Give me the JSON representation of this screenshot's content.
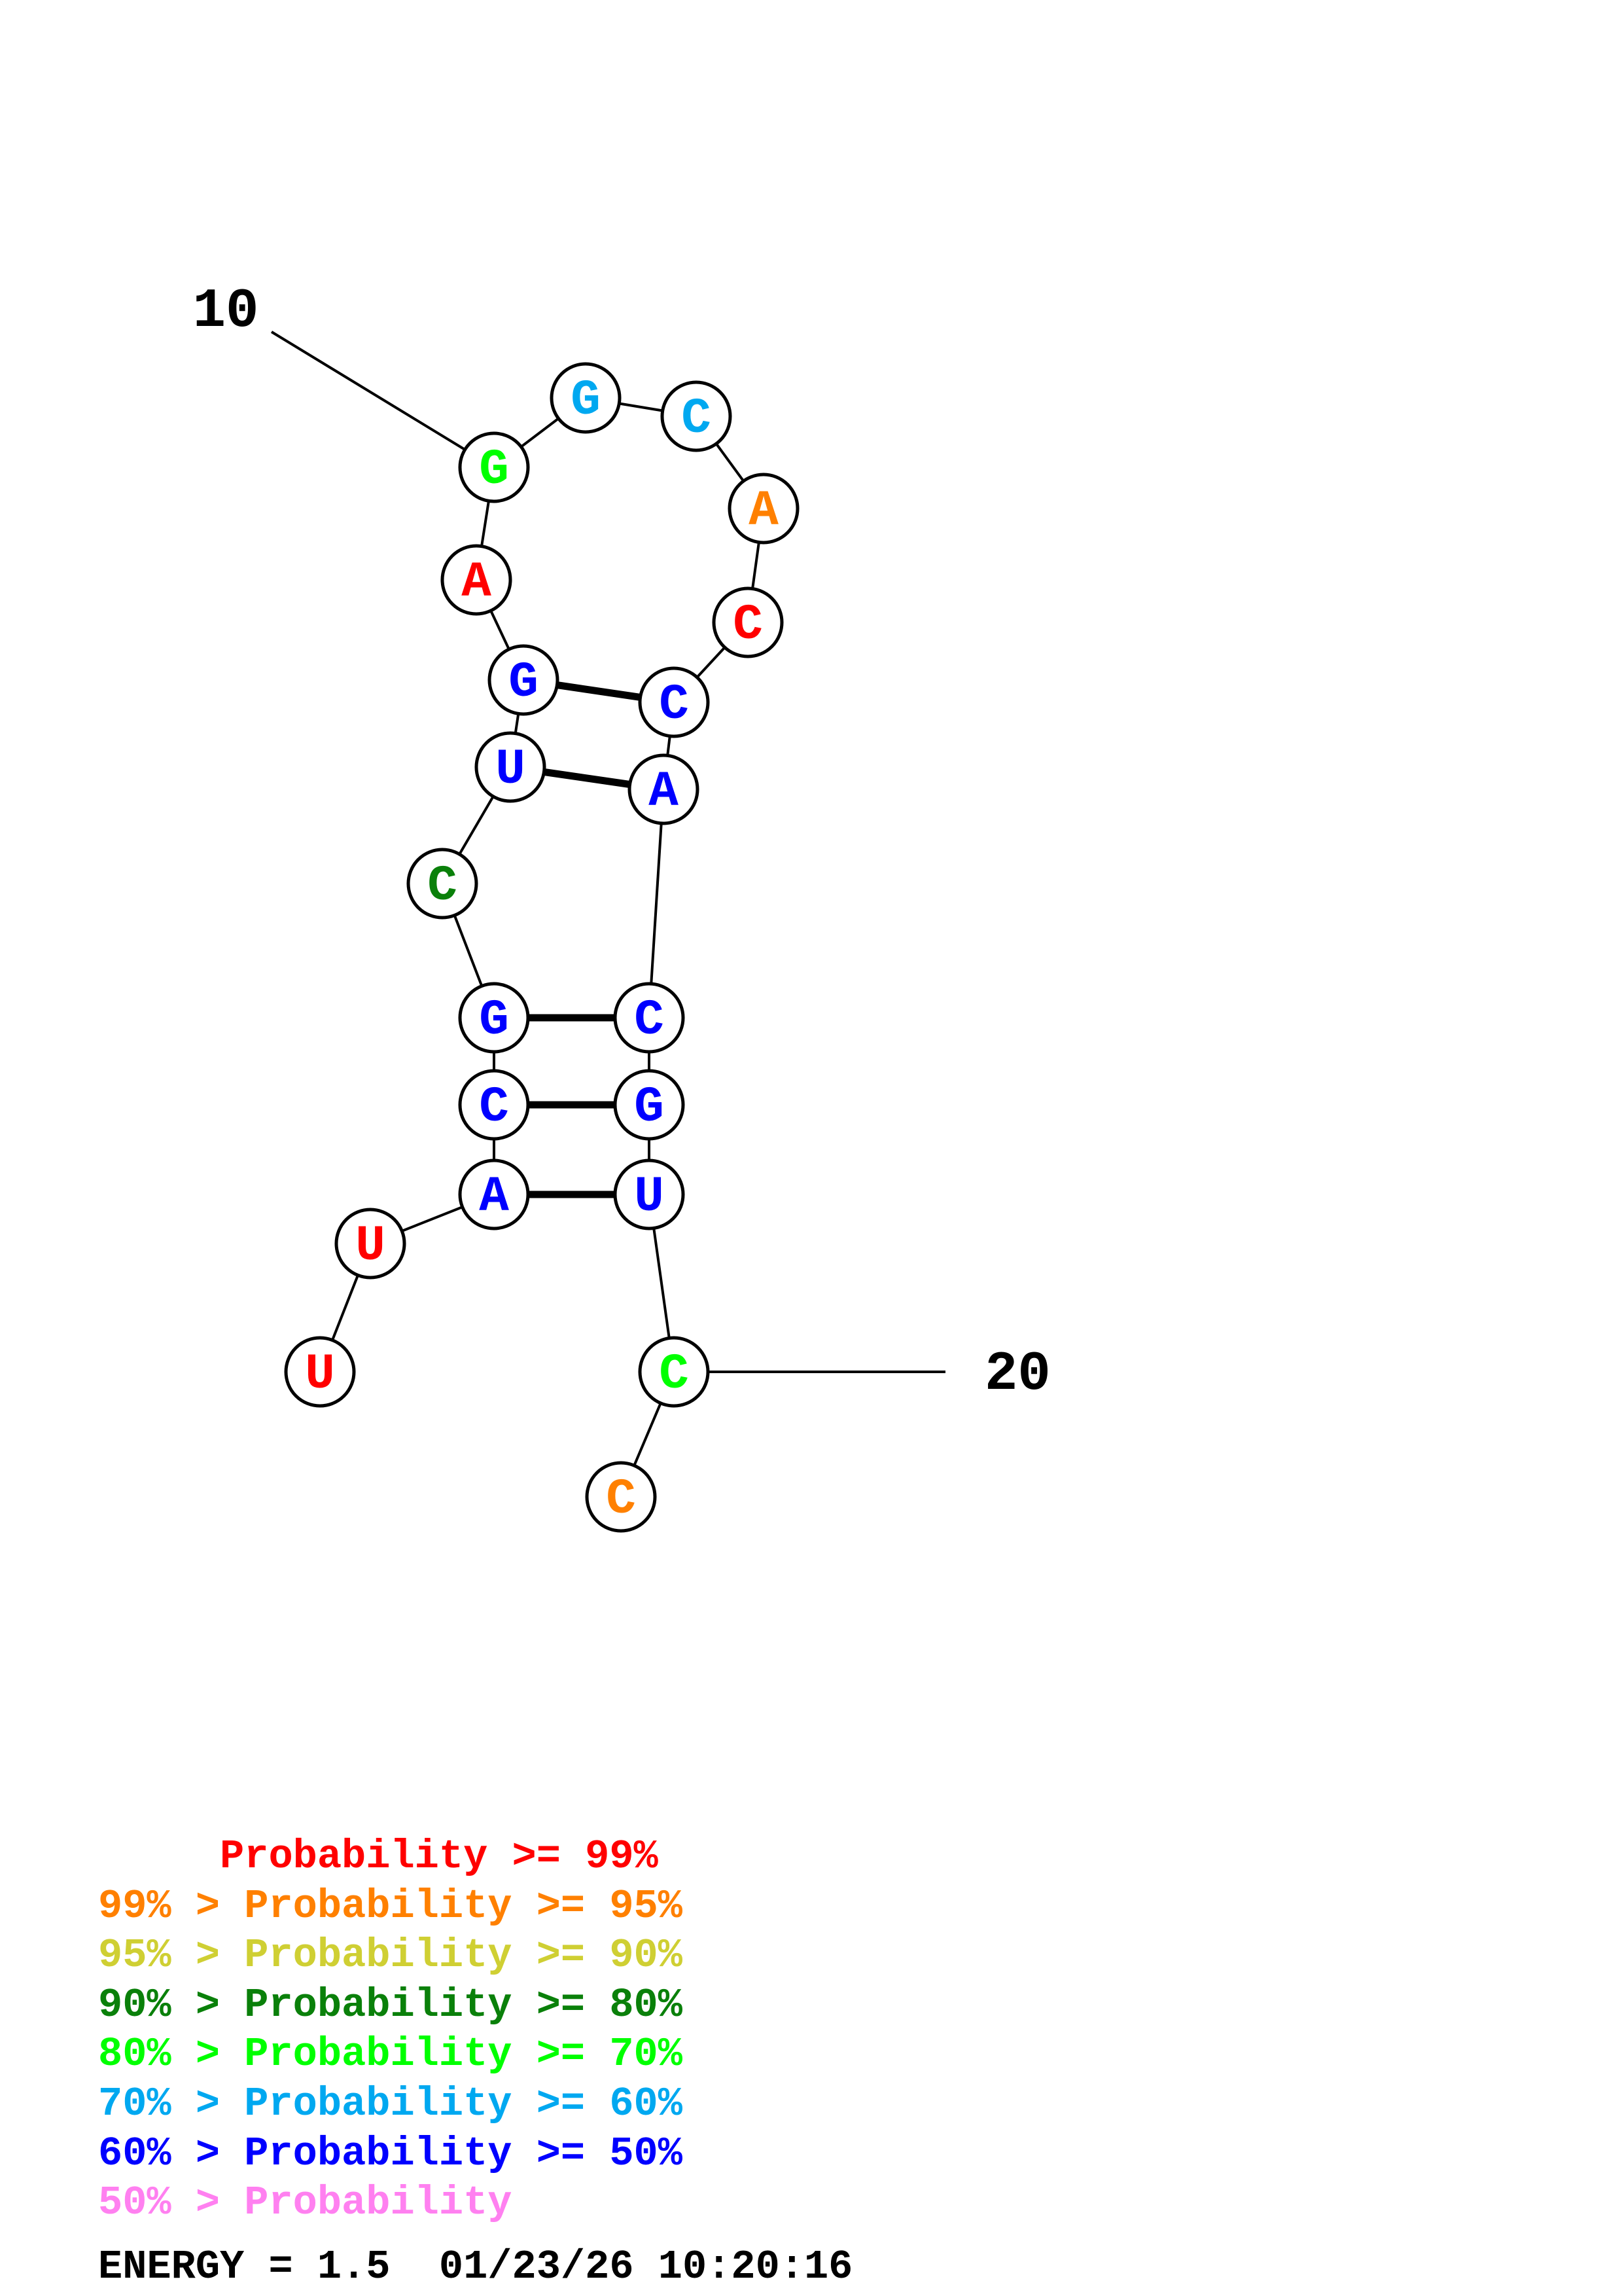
{
  "structure": {
    "sequence": [
      "U",
      "U",
      "A",
      "C",
      "G",
      "C",
      "U",
      "G",
      "A",
      "G",
      "G",
      "C",
      "A",
      "C",
      "C",
      "A",
      "C",
      "G",
      "U",
      "C",
      "C"
    ],
    "probability_class": [
      0,
      0,
      6,
      6,
      6,
      3,
      6,
      6,
      0,
      4,
      5,
      5,
      1,
      0,
      6,
      6,
      6,
      6,
      6,
      4,
      1
    ],
    "pairs": [
      [
        3,
        19
      ],
      [
        4,
        18
      ],
      [
        5,
        17
      ],
      [
        7,
        16
      ],
      [
        8,
        15
      ]
    ],
    "position_labels": [
      {
        "index": 10,
        "text": "10"
      },
      {
        "index": 20,
        "text": "20"
      }
    ]
  },
  "legend": {
    "colors": [
      "#ff0000",
      "#ff8000",
      "#cfcf33",
      "#0a800a",
      "#00ff00",
      "#00a8f0",
      "#0000ff",
      "#ff80f0"
    ],
    "lines": [
      "     Probability >= 99%",
      "99% > Probability >= 95%",
      "95% > Probability >= 90%",
      "90% > Probability >= 80%",
      "80% > Probability >= 70%",
      "70% > Probability >= 60%",
      "60% > Probability >= 50%",
      "50% > Probability"
    ]
  },
  "footer": {
    "energy": "ENERGY = 1.5  01/23/26 10:20:16"
  }
}
